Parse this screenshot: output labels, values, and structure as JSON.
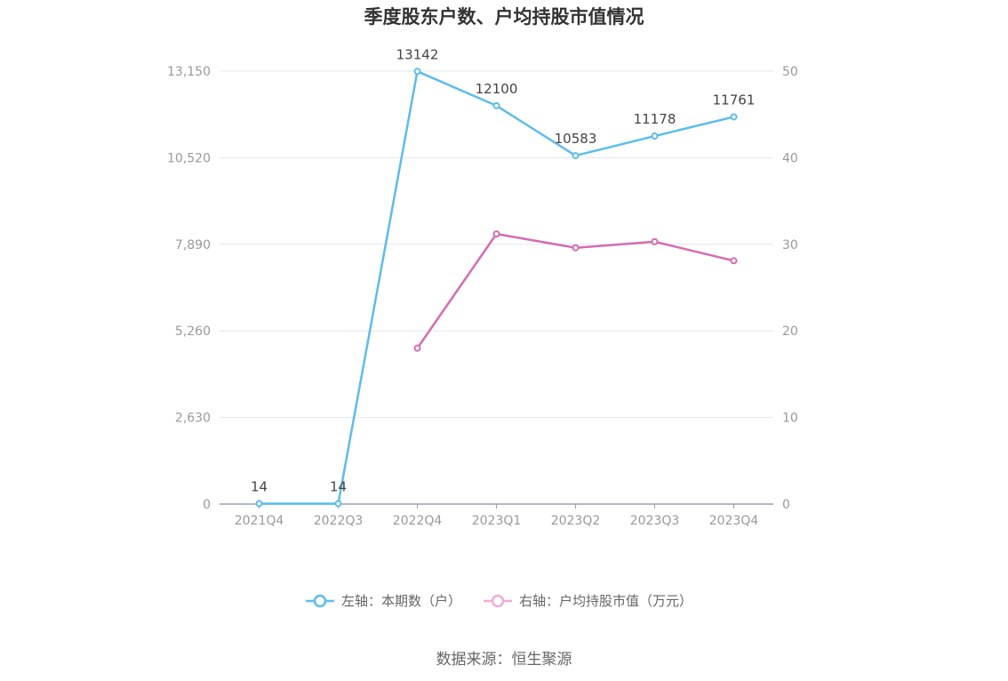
{
  "chart_data": {
    "type": "line",
    "title": "季度股东户数、户均持股市值情况",
    "categories": [
      "2021Q4",
      "2022Q3",
      "2022Q4",
      "2023Q1",
      "2023Q2",
      "2023Q3",
      "2023Q4"
    ],
    "y_left": {
      "ticks": [
        "0",
        "2,630",
        "5,260",
        "7,890",
        "10,520",
        "13,150"
      ],
      "range": [
        0,
        13150
      ]
    },
    "y_right": {
      "ticks": [
        "0",
        "10",
        "20",
        "30",
        "40",
        "50"
      ],
      "range": [
        0,
        50
      ]
    },
    "series": [
      {
        "name": "左轴：本期数（户）",
        "axis": "left",
        "color": "#5bbcec",
        "values": [
          14,
          14,
          13142,
          12100,
          10583,
          11178,
          11761
        ],
        "labels": [
          "14",
          "14",
          "13142",
          "12100",
          "10583",
          "11178",
          "11761"
        ]
      },
      {
        "name": "右轴：户均持股市值（万元）",
        "axis": "right",
        "color": "#d46cb0",
        "values": [
          null,
          null,
          18.0,
          31.2,
          29.6,
          30.3,
          28.1
        ]
      }
    ],
    "grid": true,
    "legend_position": "bottom"
  },
  "source": "数据来源：恒生聚源"
}
